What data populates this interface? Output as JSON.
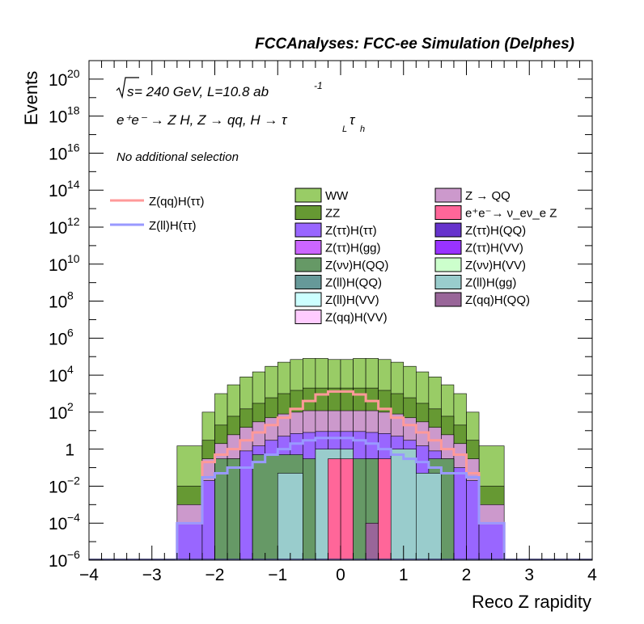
{
  "header_title": "FCCAnalyses: FCC-ee Simulation (Delphes)",
  "annotations": {
    "sqrt_s": "s",
    "energy_text": " = 240 GeV, L=10.8 ab",
    "lumi_exp": "-1",
    "process_text": "e⁺e⁻ → Z H, Z → qq, H → τ",
    "tau_L": "L",
    "tau_sym": "τ",
    "tau_h": "h",
    "selection": "No additional selection"
  },
  "chart_data": {
    "type": "bar",
    "stacked": true,
    "log_y": true,
    "xlabel": "Reco Z rapidity",
    "ylabel": "Events",
    "xlim": [
      -4,
      4
    ],
    "ylim": [
      1e-06,
      1e+21
    ],
    "x_ticks": [
      "−4",
      "−3",
      "−2",
      "−1",
      "0",
      "1",
      "2",
      "3",
      "4"
    ],
    "y_ticks": [
      {
        "base": "10",
        "exp": "−6"
      },
      {
        "base": "10",
        "exp": "−4"
      },
      {
        "base": "10",
        "exp": "−2"
      },
      {
        "base": "1",
        "exp": ""
      },
      {
        "base": "10",
        "exp": "2"
      },
      {
        "base": "10",
        "exp": "4"
      },
      {
        "base": "10",
        "exp": "6"
      },
      {
        "base": "10",
        "exp": "8"
      },
      {
        "base": "10",
        "exp": "10"
      },
      {
        "base": "10",
        "exp": "12"
      },
      {
        "base": "10",
        "exp": "14"
      },
      {
        "base": "10",
        "exp": "16"
      },
      {
        "base": "10",
        "exp": "18"
      },
      {
        "base": "10",
        "exp": "20"
      }
    ],
    "bin_edges": [
      -2.6,
      -2.2,
      -2.0,
      -1.8,
      -1.6,
      -1.4,
      -1.2,
      -1.0,
      -0.8,
      -0.6,
      -0.4,
      -0.2,
      0.0,
      0.2,
      0.4,
      0.6,
      0.8,
      1.0,
      1.2,
      1.4,
      1.6,
      1.8,
      2.0,
      2.2,
      2.6
    ],
    "stack_totals": [
      {
        "name": "WW",
        "color": "#99cc66",
        "values": [
          1.5,
          100,
          1000,
          3000,
          8000,
          15000,
          30000,
          50000,
          70000,
          80000,
          80000,
          70000,
          70000,
          80000,
          80000,
          70000,
          50000,
          30000,
          15000,
          8000,
          3000,
          1000,
          100,
          1.5
        ]
      },
      {
        "name": "ZZ",
        "color": "#669933",
        "values": [
          0.01,
          3,
          20,
          60,
          150,
          300,
          600,
          1000,
          1500,
          2000,
          2000,
          2000,
          2000,
          2000,
          2000,
          1500,
          1000,
          600,
          300,
          150,
          60,
          20,
          3,
          0.01
        ]
      },
      {
        "name": "Z → QQ",
        "color": "#cc99cc",
        "values": [
          0.001,
          0.3,
          2,
          6,
          15,
          30,
          50,
          80,
          100,
          120,
          120,
          120,
          120,
          120,
          120,
          100,
          80,
          50,
          30,
          15,
          6,
          2,
          0.3,
          0.001
        ]
      },
      {
        "name": "Z(ττ)H(ττ)",
        "color": "#9966ff",
        "values": [
          0.0001,
          0.02,
          0.1,
          0.3,
          0.8,
          1.5,
          3,
          5,
          7,
          8,
          9,
          9,
          9,
          9,
          8,
          7,
          5,
          3,
          1.5,
          0.8,
          0.3,
          0.1,
          0.02,
          0.0001
        ]
      }
    ],
    "series": [
      {
        "name": "WW",
        "color": "#99cc66"
      },
      {
        "name": "ZZ",
        "color": "#669933"
      },
      {
        "name": "Z(ττ)H(ττ)",
        "color": "#9966ff"
      },
      {
        "name": "Z(ττ)H(gg)",
        "color": "#cc66ff"
      },
      {
        "name": "Z(νν)H(QQ)",
        "color": "#669966"
      },
      {
        "name": "Z(ll)H(QQ)",
        "color": "#669999"
      },
      {
        "name": "Z(ll)H(VV)",
        "color": "#ccffff"
      },
      {
        "name": "Z(qq)H(VV)",
        "color": "#ffccff"
      },
      {
        "name": "Z → QQ",
        "color": "#cc99cc"
      },
      {
        "name": "e⁺e⁻→ ν_eν_e Z",
        "color": "#ff6699"
      },
      {
        "name": "Z(ττ)H(QQ)",
        "color": "#6633cc"
      },
      {
        "name": "Z(ττ)H(VV)",
        "color": "#9933ff"
      },
      {
        "name": "Z(νν)H(VV)",
        "color": "#ccffcc"
      },
      {
        "name": "Z(ll)H(gg)",
        "color": "#99cccc"
      },
      {
        "name": "Z(qq)H(QQ)",
        "color": "#996699"
      }
    ],
    "components": {
      "Z(νν)H(QQ)": {
        "color": "#669966",
        "values": [
          0.5,
          0.3,
          0.0003,
          0.3,
          0.3,
          0.3,
          0.3,
          0.3
        ]
      },
      "Z(ll)H(gg)": {
        "color": "#99cccc",
        "values": [
          1,
          1,
          1,
          0.05,
          0.05
        ]
      },
      "e⁺e⁻→ ν_eν_e Z": {
        "color": "#ff6699",
        "values": [
          0.3,
          0.3,
          0.3
        ]
      },
      "Z(qq)H(QQ)": {
        "color": "#996699",
        "values": [
          0.0001
        ]
      }
    },
    "signal_lines": [
      {
        "name": "Z(qq)H(ττ)",
        "color": "#ff9999",
        "values": [
          0.0001,
          0.2,
          0.5,
          1,
          3,
          8,
          20,
          50,
          150,
          400,
          900,
          1300,
          1300,
          900,
          400,
          150,
          50,
          20,
          8,
          3,
          1,
          0.5,
          0.05,
          0.0001
        ]
      },
      {
        "name": "Z(ll)H(ττ)",
        "color": "#9999ff",
        "values": [
          0.0001,
          0.03,
          0.05,
          0.1,
          0.1,
          0.2,
          0.5,
          1,
          2,
          3,
          4,
          4,
          4,
          3,
          2,
          1,
          0.5,
          0.3,
          0.2,
          0.1,
          0.05,
          0.05,
          0.03,
          0.0001
        ]
      }
    ]
  }
}
